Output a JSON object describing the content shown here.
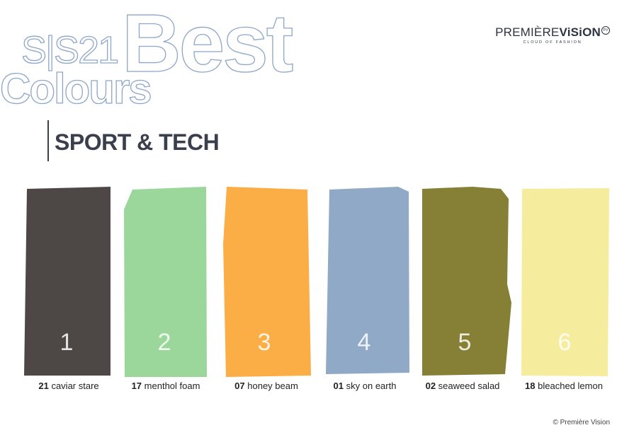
{
  "header": {
    "season": "S|S21",
    "best": "Best",
    "colours": "Colours"
  },
  "logo": {
    "name_regular": "PREMIÈRE",
    "name_bold": "ViSiON",
    "mark": "PV",
    "tagline": "CLOUD OF FASHION"
  },
  "section": {
    "title": "SPORT & TECH"
  },
  "colors": {
    "title_outline": "#8ea6c9",
    "text_dark": "#3b3f4c"
  },
  "swatches": [
    {
      "number": "1",
      "code": "21",
      "name": "caviar stare",
      "color": "#4d4845"
    },
    {
      "number": "2",
      "code": "17",
      "name": "menthol foam",
      "color": "#9bd69b"
    },
    {
      "number": "3",
      "code": "07",
      "name": "honey beam",
      "color": "#fbae45"
    },
    {
      "number": "4",
      "code": "01",
      "name": "sky on earth",
      "color": "#8fa9c6"
    },
    {
      "number": "5",
      "code": "02",
      "name": "seaweed salad",
      "color": "#868037"
    },
    {
      "number": "6",
      "code": "18",
      "name": "bleached lemon",
      "color": "#f6ec9e"
    }
  ],
  "footer": {
    "copyright": "© Première Vision"
  }
}
